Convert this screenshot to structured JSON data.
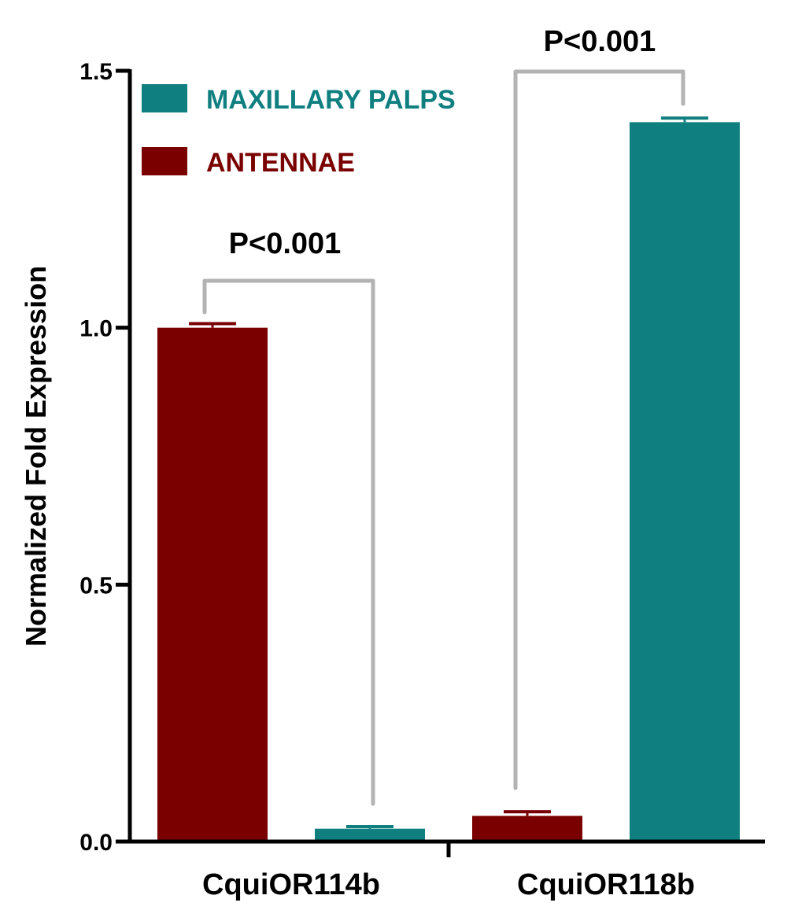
{
  "chart_data": {
    "type": "bar",
    "ylabel": "Normalized Fold Expression",
    "xlabel": "",
    "ylim": [
      0,
      1.5
    ],
    "yticks": [
      "0.0",
      "0.5",
      "1.0",
      "1.5"
    ],
    "categories": [
      "CquiOR114b",
      "CquiOR118b"
    ],
    "series": [
      {
        "name": "ANTENNAE",
        "color": "#7a0000",
        "values": [
          1.0,
          0.05
        ],
        "errors": [
          0.008,
          0.008
        ]
      },
      {
        "name": "MAXILLARY PALPS",
        "color": "#107f80",
        "values": [
          0.025,
          1.4
        ],
        "errors": [
          0.004,
          0.008
        ]
      }
    ],
    "legend": {
      "placement": "top-left",
      "order": [
        "MAXILLARY PALPS",
        "ANTENNAE"
      ]
    },
    "annotations": [
      {
        "text": "P<0.001",
        "category": "CquiOR114b"
      },
      {
        "text": "P<0.001",
        "category": "CquiOR118b"
      }
    ],
    "grid": false,
    "colors": {
      "axis": "#000000",
      "bracket": "#b3b3b3"
    }
  }
}
